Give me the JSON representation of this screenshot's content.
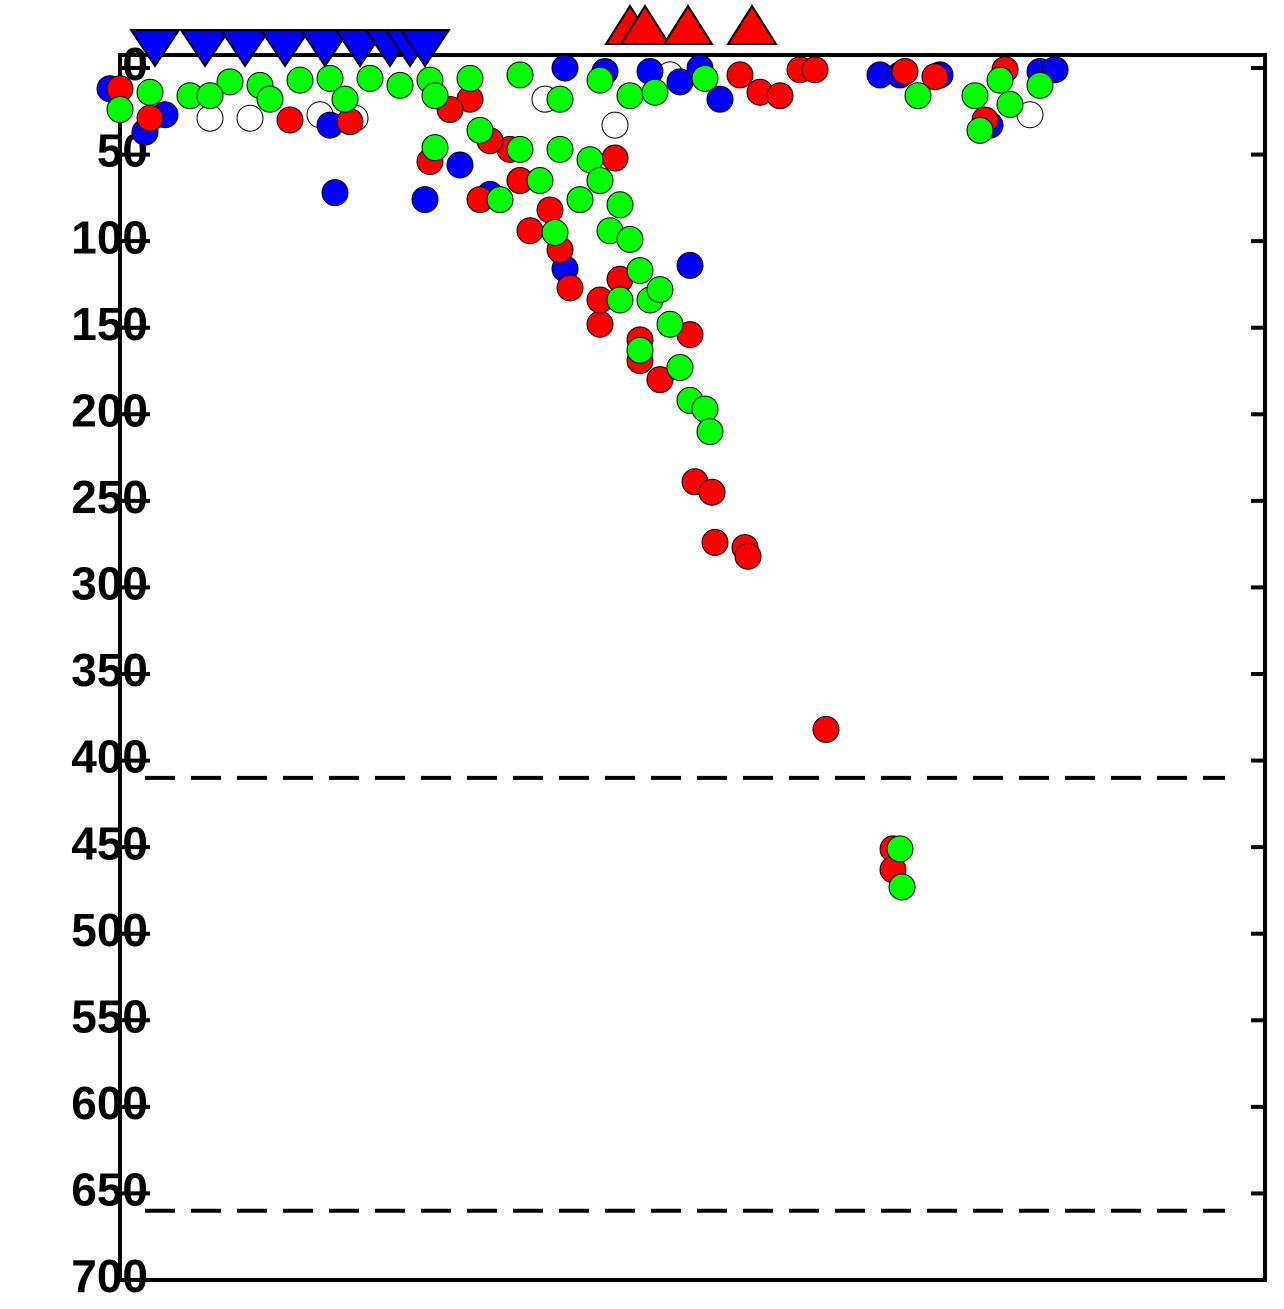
{
  "chart_data": {
    "type": "scatter",
    "xlim": [
      0,
      1140
    ],
    "ylim": [
      0,
      700
    ],
    "y_inverted": true,
    "yticks": [
      0,
      50,
      100,
      150,
      200,
      250,
      300,
      350,
      400,
      450,
      500,
      550,
      600,
      650,
      700
    ],
    "hlines": [
      410,
      660
    ],
    "series": [
      {
        "color": "#ffffff",
        "x": [
          100,
          140,
          210,
          245,
          505,
          560,
          920,
          435
        ],
        "values": [
          29,
          29,
          27,
          29,
          33,
          4,
          27,
          18
        ]
      },
      {
        "color": "#0000ff",
        "x": [
          0,
          35,
          55,
          225,
          315,
          350,
          455,
          495,
          540,
          570,
          590,
          610,
          770,
          790,
          830,
          930,
          945,
          880,
          455,
          580,
          380,
          220
        ],
        "values": [
          12,
          37,
          27,
          72,
          76,
          56,
          0,
          2,
          2,
          8,
          0,
          18,
          4,
          4,
          4,
          2,
          1,
          33,
          116,
          114,
          73,
          33
        ]
      },
      {
        "color": "#ff0000",
        "x": [
          10,
          40,
          180,
          240,
          320,
          370,
          360,
          400,
          420,
          440,
          460,
          490,
          510,
          530,
          550,
          580,
          505,
          585,
          602,
          605,
          635,
          638,
          716,
          783,
          783,
          630,
          650,
          670,
          690,
          705,
          795,
          825,
          895,
          875,
          340,
          380,
          410,
          450,
          490,
          530
        ],
        "values": [
          12,
          29,
          30,
          31,
          54,
          76,
          18,
          47,
          94,
          82,
          127,
          148,
          122,
          157,
          180,
          154,
          52,
          239,
          245,
          274,
          277,
          282,
          382,
          451,
          463,
          4,
          14,
          16,
          1,
          1,
          2,
          5,
          1,
          30,
          24,
          42,
          65,
          105,
          134,
          169
        ]
      },
      {
        "color": "#00ff00",
        "x": [
          10,
          40,
          80,
          120,
          150,
          190,
          220,
          260,
          290,
          320,
          360,
          410,
          450,
          490,
          520,
          545,
          595,
          325,
          370,
          390,
          410,
          430,
          445,
          450,
          470,
          480,
          490,
          500,
          510,
          520,
          530,
          540,
          550,
          560,
          570,
          580,
          595,
          600,
          510,
          530,
          808,
          865,
          890,
          900,
          870,
          930,
          790,
          792,
          325,
          235,
          160,
          100
        ],
        "values": [
          24,
          14,
          16,
          8,
          10,
          7,
          6,
          6,
          10,
          7,
          6,
          4,
          18,
          7,
          16,
          14,
          6,
          46,
          36,
          76,
          47,
          65,
          95,
          47,
          76,
          53,
          65,
          94,
          79,
          99,
          117,
          134,
          128,
          148,
          173,
          192,
          197,
          210,
          134,
          163,
          16,
          16,
          7,
          21,
          36,
          10,
          451,
          473,
          16,
          18,
          18,
          16
        ]
      }
    ],
    "markers": [
      {
        "shape": "triangle-down",
        "color": "#0000ff",
        "x": [
          45,
          95,
          135,
          175,
          215,
          250,
          280,
          300,
          315
        ]
      },
      {
        "shape": "triangle-up",
        "color": "#ff0000",
        "x": [
          520,
          535,
          578,
          642
        ]
      }
    ]
  }
}
